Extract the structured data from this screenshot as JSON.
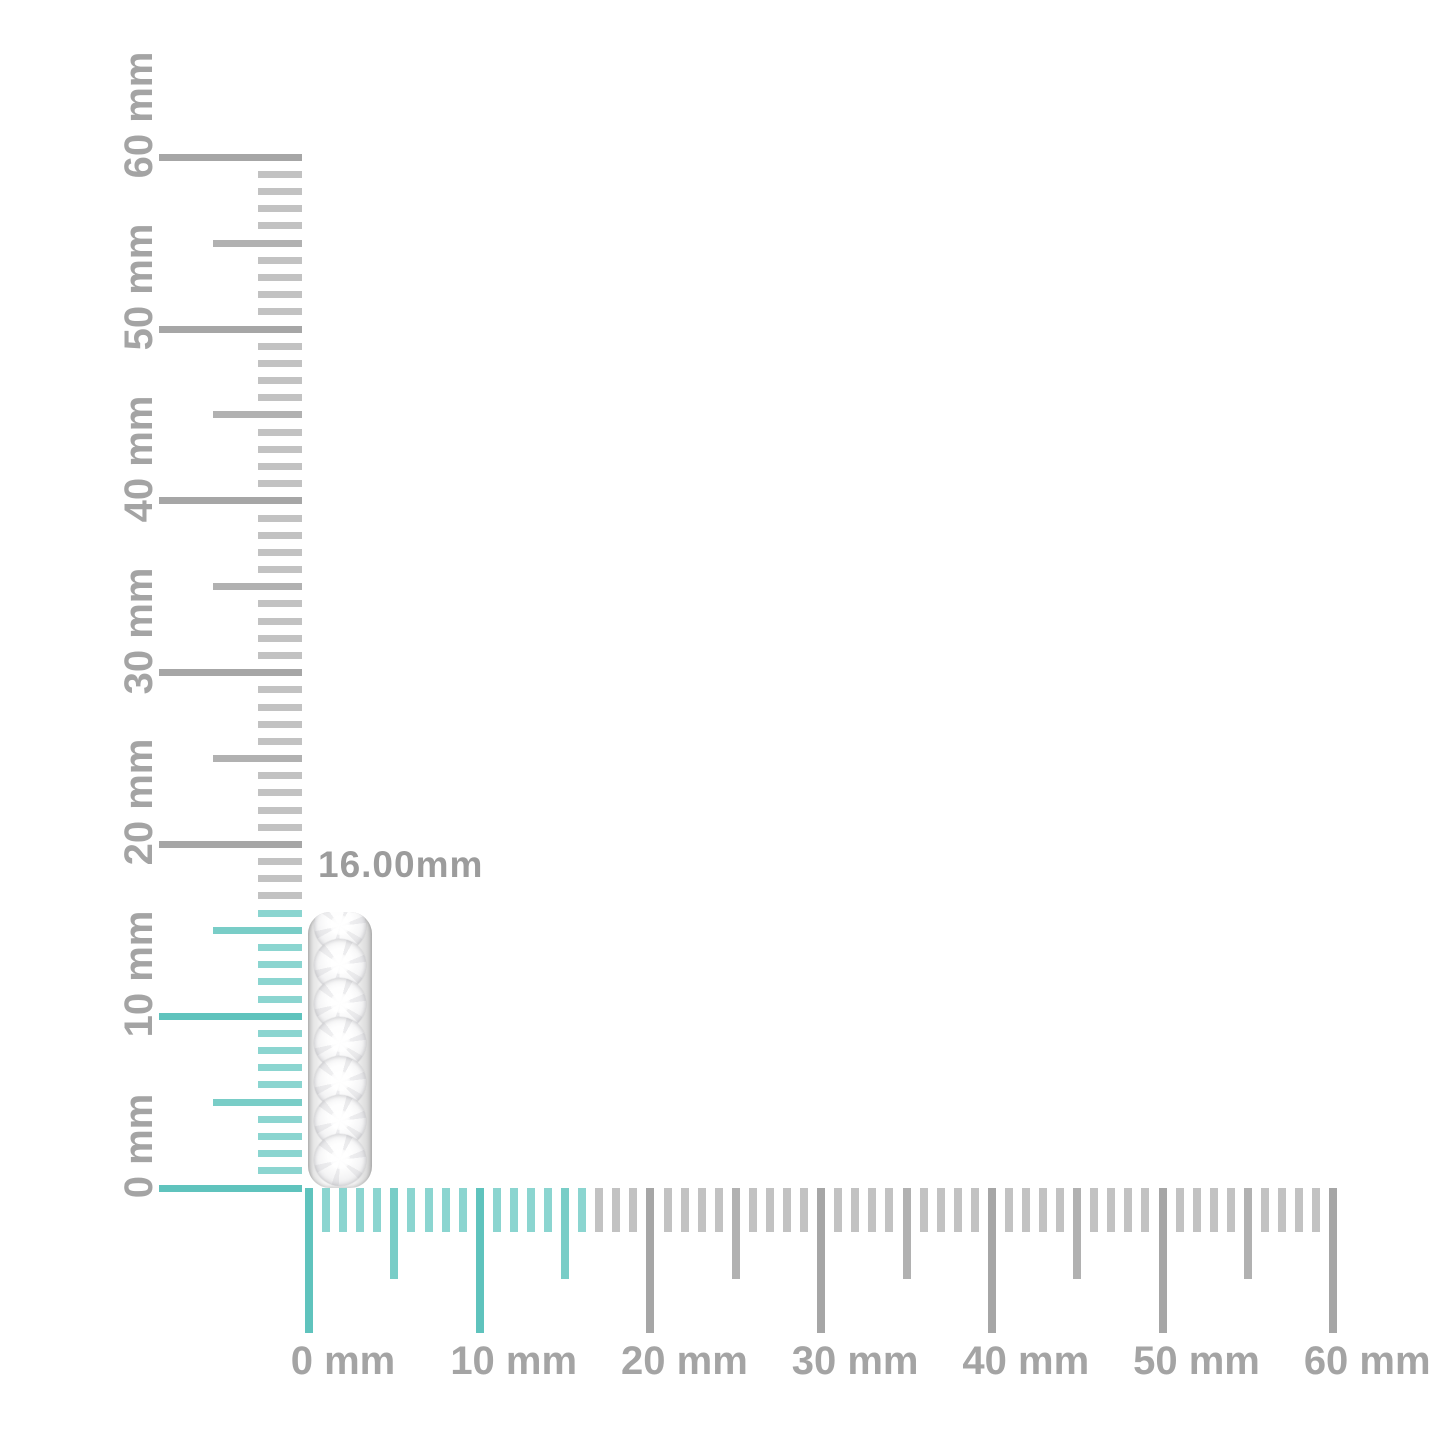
{
  "item": {
    "name": "diamond-pave-hoop-earring",
    "dimension_label": "16.00mm",
    "stone_count": 7
  },
  "rulers": {
    "unit": "mm",
    "min_mm": 0,
    "max_mm": 60,
    "minor_step_mm": 1,
    "mid_step_mm": 5,
    "major_step_mm": 10,
    "highlight_to_mm": 16,
    "vertical_labels": [
      "0 mm",
      "10 mm",
      "20 mm",
      "30 mm",
      "40 mm",
      "50 mm",
      "60 mm"
    ],
    "horizontal_labels": [
      "0 mm",
      "10 mm",
      "20 mm",
      "30 mm",
      "40 mm",
      "50 mm",
      "60 mm"
    ]
  },
  "colors": {
    "background": "#ffffff",
    "gray_major": "#a6a6a6",
    "gray_mid": "#b1b1b1",
    "gray_minor": "#c2c2c2",
    "teal_major": "#5fc3bd",
    "teal_mid": "#79cdc7",
    "teal_minor": "#8bd5d0",
    "ruler_label": "#a4a4a4",
    "dimension_label": "#9c9c9c",
    "metal": "#cfcfcf"
  }
}
